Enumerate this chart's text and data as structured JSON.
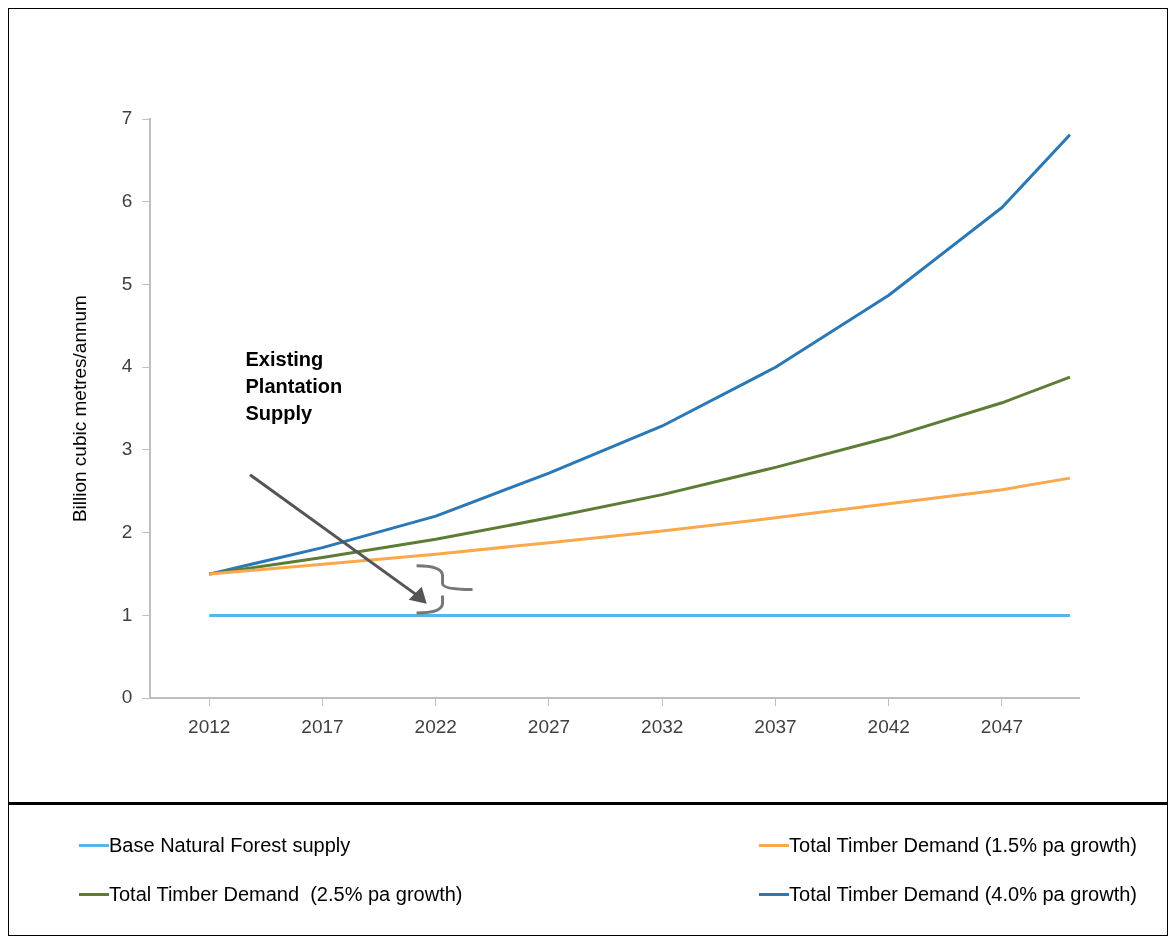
{
  "chart_data": {
    "type": "line",
    "ylabel": "Billion cubic metres/annum",
    "xlim": [
      2009.4,
      2050.4
    ],
    "xticks": [
      2012,
      2017,
      2022,
      2027,
      2032,
      2037,
      2042,
      2047
    ],
    "ylim": [
      0,
      7
    ],
    "yticks": [
      0,
      1,
      2,
      3,
      4,
      5,
      6,
      7
    ],
    "grid": false,
    "legend": "bottom",
    "marker": "none",
    "line_style": "solid",
    "annotations": [
      "Existing Plantation Supply"
    ],
    "series": [
      {
        "name": "Base Natural Forest supply",
        "color": "#5bb4e8",
        "x": [
          2012,
          2050
        ],
        "values": [
          1,
          1
        ]
      },
      {
        "name": "Total Timber Demand (1.5% pa growth)",
        "color": "#f9a94b",
        "x": [
          2012,
          2017,
          2022,
          2027,
          2032,
          2037,
          2042,
          2047,
          2050
        ],
        "values": [
          1.5,
          1.62,
          1.74,
          1.88,
          2.02,
          2.18,
          2.35,
          2.52,
          2.66
        ]
      },
      {
        "name": "Total Timber Demand  (2.5% pa growth)",
        "color": "#5d7d36",
        "x": [
          2012,
          2017,
          2022,
          2027,
          2032,
          2037,
          2042,
          2047,
          2050
        ],
        "values": [
          1.5,
          1.7,
          1.92,
          2.18,
          2.46,
          2.79,
          3.15,
          3.57,
          3.88
        ]
      },
      {
        "name": "Total Timber Demand (4.0% pa growth)",
        "color": "#2a78b5",
        "x": [
          2012,
          2017,
          2022,
          2027,
          2032,
          2037,
          2042,
          2047,
          2050
        ],
        "values": [
          1.5,
          1.82,
          2.2,
          2.72,
          3.29,
          4.0,
          4.87,
          5.93,
          6.81
        ]
      }
    ]
  }
}
